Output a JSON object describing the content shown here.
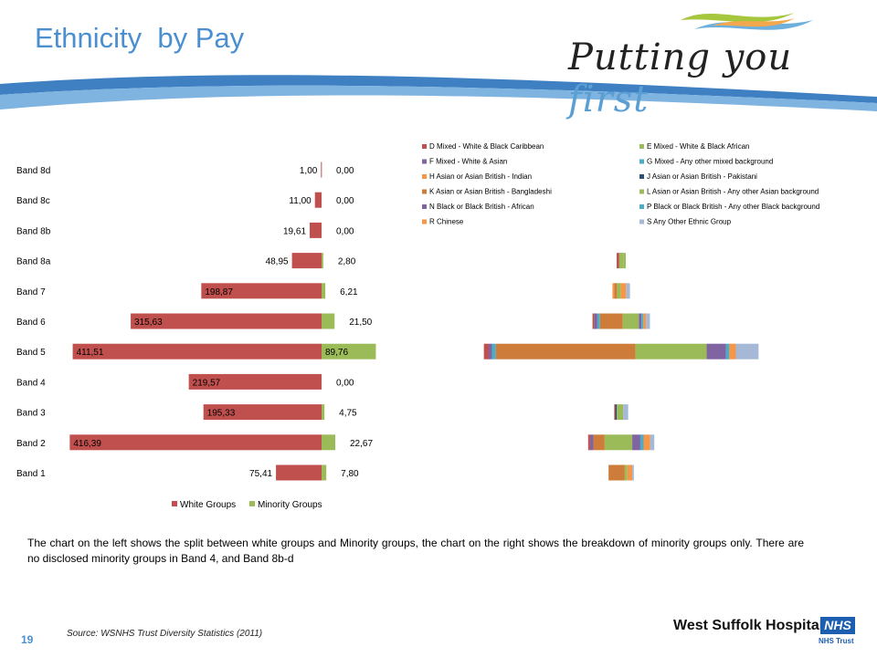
{
  "header": {
    "title": "Ethnicity  by Pay",
    "brand_script": "Putting you",
    "brand_script_accent": "first"
  },
  "chart_data": [
    {
      "type": "bar",
      "orientation": "horizontal",
      "stacked": true,
      "categories": [
        "Band 8d",
        "Band 8c",
        "Band 8b",
        "Band 8a",
        "Band 7",
        "Band 6",
        "Band 5",
        "Band 4",
        "Band 3",
        "Band 2",
        "Band 1"
      ],
      "series": [
        {
          "name": "White Groups",
          "color": "#c0504d",
          "values": [
            1.0,
            11.0,
            19.61,
            48.95,
            198.87,
            315.63,
            411.51,
            219.57,
            195.33,
            416.39,
            75.41
          ],
          "labels": [
            "1,00",
            "11,00",
            "19,61",
            "48,95",
            "198,87",
            "315,63",
            "411,51",
            "219,57",
            "195,33",
            "416,39",
            "75,41"
          ]
        },
        {
          "name": "Minority Groups",
          "color": "#9bbb59",
          "values": [
            0.0,
            0.0,
            0.0,
            2.8,
            6.21,
            21.5,
            89.76,
            0.0,
            4.75,
            22.67,
            7.8
          ],
          "labels": [
            "0,00",
            "0,00",
            "0,00",
            "2,80",
            "6,21",
            "21,50",
            "89,76",
            "0,00",
            "4,75",
            "22,67",
            "7,80"
          ]
        }
      ],
      "legend_position": "bottom"
    },
    {
      "type": "bar",
      "orientation": "horizontal",
      "stacked": true,
      "centered": true,
      "categories": [
        "Band 8d",
        "Band 8c",
        "Band 8b",
        "Band 8a",
        "Band 7",
        "Band 6",
        "Band 5",
        "Band 4",
        "Band 3",
        "Band 2",
        "Band 1"
      ],
      "series": [
        {
          "name": "D Mixed - White & Black Caribbean",
          "color": "#c0504d",
          "values": [
            0,
            0,
            0,
            0.8,
            0,
            0.5,
            1.5,
            0,
            0.3,
            0.6,
            0
          ]
        },
        {
          "name": "E Mixed - White & Black African",
          "color": "#9bbb59",
          "values": [
            0,
            0,
            0,
            1.2,
            0,
            0,
            0,
            0,
            0,
            0,
            0
          ]
        },
        {
          "name": "F Mixed - White & Asian",
          "color": "#8064a2",
          "values": [
            0,
            0,
            0,
            0,
            0,
            1.0,
            1.0,
            0,
            0,
            1.0,
            0
          ]
        },
        {
          "name": "G Mixed - Any other mixed background",
          "color": "#4bacc6",
          "values": [
            0,
            0,
            0,
            0,
            0,
            0.8,
            1.2,
            0,
            0,
            0,
            0
          ]
        },
        {
          "name": "H Asian or Asian British - Indian",
          "color": "#f79646",
          "values": [
            0,
            0,
            0,
            0,
            0.6,
            0,
            0,
            0,
            0,
            0,
            0
          ]
        },
        {
          "name": "J Asian or Asian British - Pakistani",
          "color": "#2c4d75",
          "values": [
            0,
            0,
            0,
            0,
            0,
            0,
            0,
            0,
            0.5,
            0,
            0
          ]
        },
        {
          "name": "K Asian or Asian British - Bangladeshi",
          "color": "#cd7c3a",
          "values": [
            0,
            0,
            0,
            0,
            0.8,
            7.0,
            43.0,
            0,
            0,
            3.5,
            5.0
          ]
        },
        {
          "name": "L Asian or Asian British - Any other Asian background",
          "color": "#9bbb59",
          "values": [
            0,
            0,
            0,
            0.8,
            1.2,
            5.0,
            22.0,
            0,
            2.0,
            8.5,
            0.8
          ]
        },
        {
          "name": "N Black or Black British - African",
          "color": "#8064a2",
          "values": [
            0,
            0,
            0,
            0,
            0,
            0.8,
            6.0,
            0,
            0,
            2.5,
            0
          ]
        },
        {
          "name": "P Black or Black British - Any other Black background",
          "color": "#4bacc6",
          "values": [
            0,
            0,
            0,
            0,
            0,
            0.6,
            1.0,
            0,
            0,
            1.0,
            0
          ]
        },
        {
          "name": "R Chinese",
          "color": "#f79646",
          "values": [
            0,
            0,
            0,
            0,
            1.6,
            0.8,
            2.0,
            0,
            0,
            2.0,
            1.5
          ]
        },
        {
          "name": "S Any Other Ethnic Group",
          "color": "#a5b8d6",
          "values": [
            0,
            0,
            0,
            0,
            1.2,
            1.2,
            7.0,
            0,
            1.5,
            1.3,
            0.5
          ]
        }
      ],
      "legend_position": "top"
    }
  ],
  "body_text": "The chart on the left shows the split between white groups and Minority groups, the chart on the right  shows the breakdown of minority groups only. There  are no disclosed minority groups in Band 4, and Band 8b-d",
  "footer": {
    "page_number": "19",
    "source": "Source: WSNHS Trust Diversity Statistics (2011)",
    "hospital_name": "West Suffolk Hospital",
    "nhs_badge": "NHS",
    "nhs_trust": "NHS Trust"
  },
  "colors": {
    "accent_blue": "#4b8fd0",
    "white_groups": "#c0504d",
    "minority_groups": "#9bbb59"
  }
}
